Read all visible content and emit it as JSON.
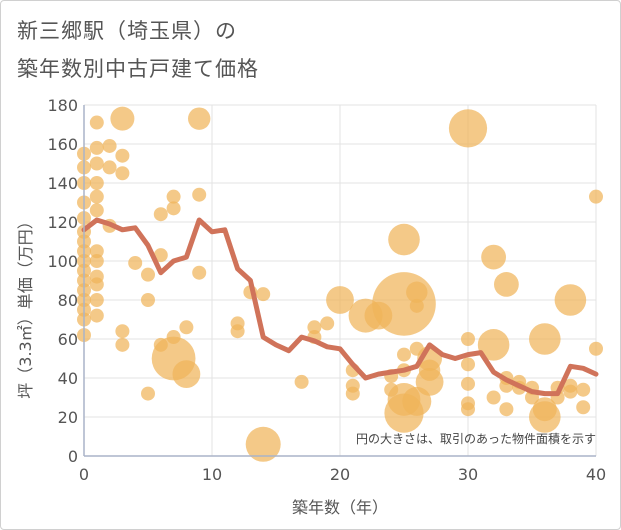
{
  "chart_data": {
    "type": "scatter",
    "title_line1": "新三郷駅（埼玉県）の",
    "title_line2": "築年数別中古戸建て価格",
    "xlabel": "築年数（年）",
    "ylabel": "坪（3.3㎡）単価（万円）",
    "xlim": [
      0,
      40
    ],
    "ylim": [
      0,
      180
    ],
    "x_ticks": [
      0,
      10,
      20,
      30,
      40
    ],
    "y_ticks": [
      0,
      20,
      40,
      60,
      80,
      100,
      120,
      140,
      160,
      180
    ],
    "annotation": "円の大きさは、取引のあった物件面積を示す",
    "colors": {
      "bubble": "#f0b45a",
      "line": "#d0735a",
      "grid": "#e3e3e3",
      "axis_line": "#aab4c8"
    },
    "bubbles": [
      {
        "x": 0,
        "y": 155,
        "s": 1
      },
      {
        "x": 0,
        "y": 148,
        "s": 1
      },
      {
        "x": 0,
        "y": 140,
        "s": 1
      },
      {
        "x": 0,
        "y": 130,
        "s": 1
      },
      {
        "x": 0,
        "y": 122,
        "s": 1
      },
      {
        "x": 0,
        "y": 115,
        "s": 1
      },
      {
        "x": 0,
        "y": 110,
        "s": 1
      },
      {
        "x": 0,
        "y": 105,
        "s": 1
      },
      {
        "x": 0,
        "y": 100,
        "s": 1
      },
      {
        "x": 0,
        "y": 95,
        "s": 1
      },
      {
        "x": 0,
        "y": 90,
        "s": 1
      },
      {
        "x": 0,
        "y": 85,
        "s": 1
      },
      {
        "x": 0,
        "y": 80,
        "s": 1
      },
      {
        "x": 0,
        "y": 75,
        "s": 1
      },
      {
        "x": 0,
        "y": 70,
        "s": 1
      },
      {
        "x": 0,
        "y": 62,
        "s": 1
      },
      {
        "x": 1,
        "y": 171,
        "s": 1
      },
      {
        "x": 1,
        "y": 158,
        "s": 1
      },
      {
        "x": 1,
        "y": 150,
        "s": 1
      },
      {
        "x": 1,
        "y": 140,
        "s": 1
      },
      {
        "x": 1,
        "y": 133,
        "s": 1
      },
      {
        "x": 1,
        "y": 126,
        "s": 1
      },
      {
        "x": 1,
        "y": 105,
        "s": 1
      },
      {
        "x": 1,
        "y": 100,
        "s": 1
      },
      {
        "x": 1,
        "y": 92,
        "s": 1
      },
      {
        "x": 1,
        "y": 88,
        "s": 1
      },
      {
        "x": 1,
        "y": 80,
        "s": 1
      },
      {
        "x": 1,
        "y": 72,
        "s": 1
      },
      {
        "x": 2,
        "y": 159,
        "s": 1
      },
      {
        "x": 2,
        "y": 148,
        "s": 1
      },
      {
        "x": 2,
        "y": 118,
        "s": 1
      },
      {
        "x": 3,
        "y": 173,
        "s": 1.5
      },
      {
        "x": 3,
        "y": 154,
        "s": 1
      },
      {
        "x": 3,
        "y": 145,
        "s": 1
      },
      {
        "x": 3,
        "y": 64,
        "s": 1
      },
      {
        "x": 3,
        "y": 57,
        "s": 1
      },
      {
        "x": 4,
        "y": 99,
        "s": 1
      },
      {
        "x": 5,
        "y": 93,
        "s": 1
      },
      {
        "x": 5,
        "y": 80,
        "s": 1
      },
      {
        "x": 5,
        "y": 32,
        "s": 1
      },
      {
        "x": 6,
        "y": 124,
        "s": 1
      },
      {
        "x": 6,
        "y": 103,
        "s": 1
      },
      {
        "x": 6,
        "y": 57,
        "s": 1
      },
      {
        "x": 7,
        "y": 133,
        "s": 1
      },
      {
        "x": 7,
        "y": 127,
        "s": 1
      },
      {
        "x": 7,
        "y": 61,
        "s": 1
      },
      {
        "x": 7,
        "y": 50,
        "s": 5
      },
      {
        "x": 8,
        "y": 66,
        "s": 1
      },
      {
        "x": 8,
        "y": 42,
        "s": 2
      },
      {
        "x": 9,
        "y": 173,
        "s": 1.3
      },
      {
        "x": 9,
        "y": 134,
        "s": 1
      },
      {
        "x": 9,
        "y": 94,
        "s": 1
      },
      {
        "x": 12,
        "y": 68,
        "s": 1
      },
      {
        "x": 12,
        "y": 64,
        "s": 1
      },
      {
        "x": 13,
        "y": 84,
        "s": 1
      },
      {
        "x": 14,
        "y": 83,
        "s": 1
      },
      {
        "x": 14,
        "y": 6,
        "s": 3.2
      },
      {
        "x": 17,
        "y": 38,
        "s": 1
      },
      {
        "x": 18,
        "y": 66,
        "s": 1
      },
      {
        "x": 18,
        "y": 61,
        "s": 1
      },
      {
        "x": 19,
        "y": 68,
        "s": 1
      },
      {
        "x": 20,
        "y": 80,
        "s": 2
      },
      {
        "x": 21,
        "y": 44,
        "s": 1
      },
      {
        "x": 21,
        "y": 36,
        "s": 1
      },
      {
        "x": 21,
        "y": 32,
        "s": 1
      },
      {
        "x": 22,
        "y": 72,
        "s": 3
      },
      {
        "x": 23,
        "y": 72,
        "s": 2
      },
      {
        "x": 24,
        "y": 41,
        "s": 1
      },
      {
        "x": 24,
        "y": 34,
        "s": 1
      },
      {
        "x": 25,
        "y": 111,
        "s": 2.6
      },
      {
        "x": 25,
        "y": 78,
        "s": 10.5
      },
      {
        "x": 25,
        "y": 52,
        "s": 1
      },
      {
        "x": 25,
        "y": 44,
        "s": 1
      },
      {
        "x": 25,
        "y": 29,
        "s": 2.8
      },
      {
        "x": 25,
        "y": 22,
        "s": 4
      },
      {
        "x": 26,
        "y": 84,
        "s": 1.2
      },
      {
        "x": 26,
        "y": 77,
        "s": 1
      },
      {
        "x": 26,
        "y": 55,
        "s": 1
      },
      {
        "x": 26,
        "y": 28,
        "s": 2.2
      },
      {
        "x": 27,
        "y": 50,
        "s": 1.6
      },
      {
        "x": 27,
        "y": 44,
        "s": 1.2
      },
      {
        "x": 27,
        "y": 38,
        "s": 2
      },
      {
        "x": 30,
        "y": 168,
        "s": 3.8
      },
      {
        "x": 30,
        "y": 60,
        "s": 1
      },
      {
        "x": 30,
        "y": 47,
        "s": 1
      },
      {
        "x": 30,
        "y": 37,
        "s": 1
      },
      {
        "x": 30,
        "y": 27,
        "s": 1
      },
      {
        "x": 30,
        "y": 24,
        "s": 1
      },
      {
        "x": 32,
        "y": 102,
        "s": 1.6
      },
      {
        "x": 32,
        "y": 57,
        "s": 2.6
      },
      {
        "x": 32,
        "y": 30,
        "s": 1
      },
      {
        "x": 33,
        "y": 88,
        "s": 1.6
      },
      {
        "x": 33,
        "y": 40,
        "s": 1
      },
      {
        "x": 33,
        "y": 36,
        "s": 1
      },
      {
        "x": 33,
        "y": 24,
        "s": 1
      },
      {
        "x": 34,
        "y": 38,
        "s": 1
      },
      {
        "x": 34,
        "y": 35,
        "s": 1
      },
      {
        "x": 35,
        "y": 35,
        "s": 1
      },
      {
        "x": 35,
        "y": 30,
        "s": 1
      },
      {
        "x": 36,
        "y": 60,
        "s": 2.6
      },
      {
        "x": 36,
        "y": 24,
        "s": 1.5
      },
      {
        "x": 36,
        "y": 20,
        "s": 2.6
      },
      {
        "x": 37,
        "y": 35,
        "s": 1
      },
      {
        "x": 37,
        "y": 30,
        "s": 1
      },
      {
        "x": 38,
        "y": 80,
        "s": 2.6
      },
      {
        "x": 38,
        "y": 36,
        "s": 1
      },
      {
        "x": 38,
        "y": 33,
        "s": 1
      },
      {
        "x": 39,
        "y": 34,
        "s": 1
      },
      {
        "x": 39,
        "y": 25,
        "s": 1
      },
      {
        "x": 40,
        "y": 133,
        "s": 1
      },
      {
        "x": 40,
        "y": 55,
        "s": 1
      }
    ],
    "line": {
      "x": [
        0,
        1,
        2,
        3,
        4,
        5,
        6,
        7,
        8,
        9,
        10,
        11,
        12,
        13,
        14,
        15,
        16,
        17,
        18,
        19,
        20,
        21,
        22,
        23,
        24,
        25,
        26,
        27,
        28,
        29,
        30,
        31,
        32,
        33,
        34,
        35,
        36,
        37,
        38,
        39,
        40
      ],
      "y": [
        116,
        121,
        119,
        116,
        117,
        108,
        94,
        100,
        102,
        121,
        115,
        116,
        96,
        90,
        61,
        57,
        54,
        61,
        59,
        56,
        55,
        47,
        40,
        42,
        43,
        44,
        46,
        57,
        52,
        50,
        52,
        53,
        43,
        39,
        36,
        33,
        32,
        32,
        46,
        45,
        42
      ]
    }
  }
}
